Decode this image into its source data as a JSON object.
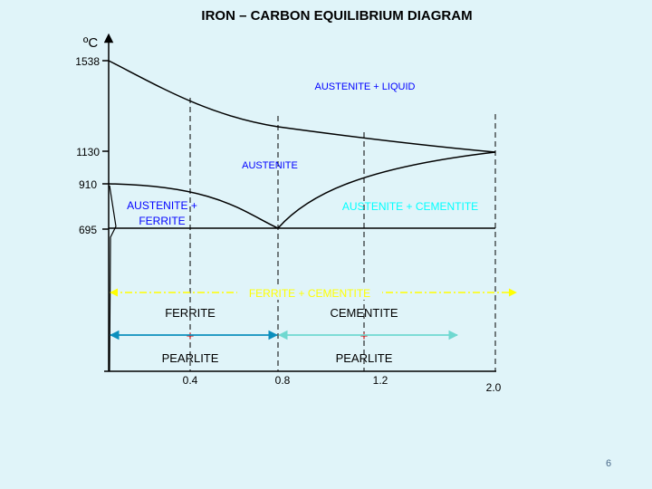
{
  "title": "IRON – CARBON EQUILIBRIUM DIAGRAM",
  "y_axis": {
    "unit": "ºC",
    "ticks": [
      {
        "value": 1538,
        "label": "1538"
      },
      {
        "value": 1130,
        "label": "1130"
      },
      {
        "value": 910,
        "label": "910"
      },
      {
        "value": 695,
        "label": "695"
      }
    ]
  },
  "x_axis": {
    "ticks": [
      {
        "value": 0.4,
        "label": "0.4"
      },
      {
        "value": 0.8,
        "label": "0.8"
      },
      {
        "value": 1.2,
        "label": "1.2"
      },
      {
        "value": 2.0,
        "label": "2.0"
      }
    ]
  },
  "regions": {
    "austenite_liquid": "AUSTENITE + LIQUID",
    "austenite": "AUSTENITE",
    "austenite_ferrite_line1": "AUSTENITE +",
    "austenite_ferrite_line2": "FERRITE",
    "austenite_cementite": "AUSTENITE + CEMENTITE",
    "ferrite_cementite": "FERRITE + CEMENTITE"
  },
  "microstructure": {
    "left_top": "FERRITE",
    "left_plus": "+",
    "left_bottom": "PEARLITE",
    "right_top": "CEMENTITE",
    "right_plus": "+",
    "right_bottom": "PEARLITE"
  },
  "colors": {
    "region_label": "#0000ff",
    "austenite_cementite_label": "#00ffff",
    "ferrite_cementite_label": "#ffff00",
    "ferrite_cementite_line": "#ffff00",
    "left_range_arrow": "#0b8fbd",
    "right_range_arrow": "#6fd8d0"
  },
  "slide_number": "6"
}
